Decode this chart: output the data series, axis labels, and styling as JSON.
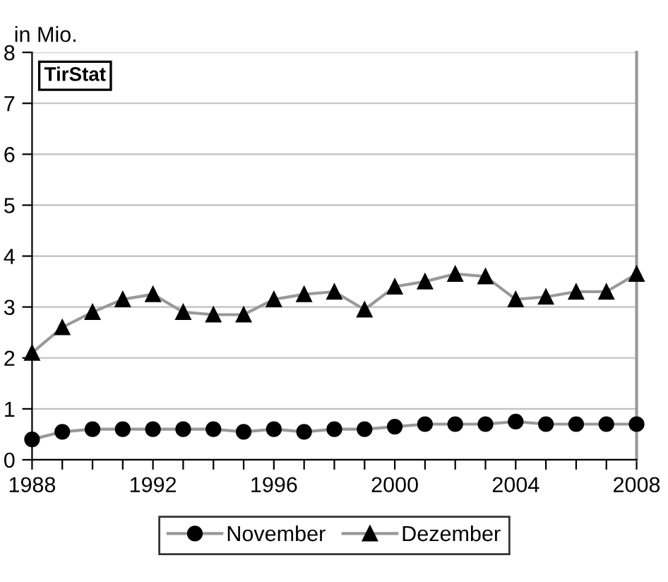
{
  "chart_data": {
    "type": "line",
    "ylabel": "in Mio.",
    "annotations": [
      "TirStat"
    ],
    "x": [
      1988,
      1989,
      1990,
      1991,
      1992,
      1993,
      1994,
      1995,
      1996,
      1997,
      1998,
      1999,
      2000,
      2001,
      2002,
      2003,
      2004,
      2005,
      2006,
      2007,
      2008
    ],
    "series": [
      {
        "name": "November",
        "color": "#000000",
        "marker": "circle",
        "values": [
          0.4,
          0.55,
          0.6,
          0.6,
          0.6,
          0.6,
          0.6,
          0.55,
          0.6,
          0.55,
          0.6,
          0.6,
          0.65,
          0.7,
          0.7,
          0.7,
          0.75,
          0.7,
          0.7,
          0.7,
          0.7
        ]
      },
      {
        "name": "Dezember",
        "color": "#000000",
        "marker": "triangle",
        "values": [
          2.1,
          2.6,
          2.9,
          3.15,
          3.25,
          2.9,
          2.85,
          2.85,
          3.15,
          3.25,
          3.3,
          2.95,
          3.4,
          3.5,
          3.65,
          3.6,
          3.15,
          3.2,
          3.3,
          3.3,
          3.65
        ]
      }
    ],
    "xlim": [
      1988,
      2008
    ],
    "xticks": [
      1988,
      {
        "value": 1989,
        "label": null
      },
      {
        "value": 1990,
        "label": null
      },
      {
        "value": 1991,
        "label": null
      },
      1992,
      {
        "value": 1993,
        "label": null
      },
      {
        "value": 1994,
        "label": null
      },
      {
        "value": 1995,
        "label": null
      },
      1996,
      {
        "value": 1997,
        "label": null
      },
      {
        "value": 1998,
        "label": null
      },
      {
        "value": 1999,
        "label": null
      },
      2000,
      {
        "value": 2001,
        "label": null
      },
      {
        "value": 2002,
        "label": null
      },
      {
        "value": 2003,
        "label": null
      },
      2004,
      {
        "value": 2005,
        "label": null
      },
      {
        "value": 2006,
        "label": null
      },
      {
        "value": 2007,
        "label": null
      },
      2008
    ],
    "ylim": [
      0,
      8
    ],
    "yticks": [
      0,
      1,
      2,
      3,
      4,
      5,
      6,
      7,
      8
    ],
    "grid": "y",
    "legend": "bottom",
    "line_style": "solid"
  }
}
